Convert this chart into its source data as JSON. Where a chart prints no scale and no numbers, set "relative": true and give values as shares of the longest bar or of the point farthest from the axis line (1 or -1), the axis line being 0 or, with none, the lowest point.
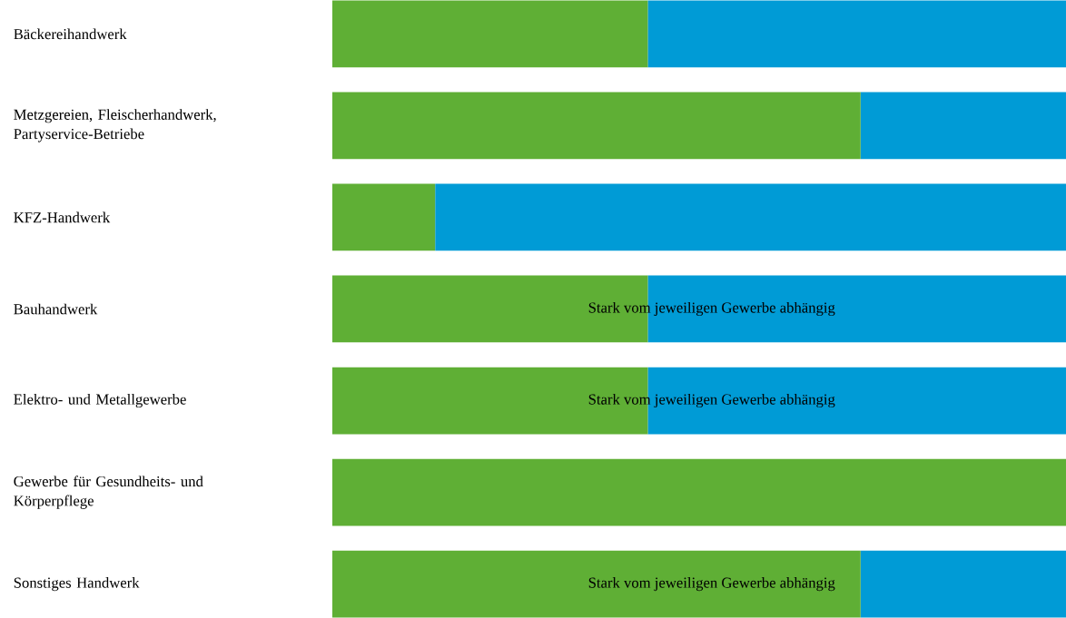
{
  "chart_data": {
    "type": "bar",
    "orientation": "horizontal",
    "stacked": true,
    "relative": true,
    "categories": [
      "Bäckereihandwerk",
      "Metzgereien, Fleischerhandwerk, Partyservice-Betriebe",
      "KFZ-Handwerk",
      "Bauhandwerk",
      "Elektro- und Metallgewerbe",
      "Gewerbe für Gesundheits- und Körperpflege",
      "Sonstiges Handwerk"
    ],
    "series": [
      {
        "color": "#5faf35",
        "values": [
          0.43,
          0.72,
          0.14,
          0.43,
          0.43,
          1.0,
          0.72
        ]
      },
      {
        "color": "#009bd6",
        "values": [
          0.57,
          0.28,
          0.86,
          0.57,
          0.57,
          0,
          0.28
        ]
      }
    ],
    "annotations": [
      "Stark vom jeweiligen Gewerbe abhängig",
      "Stark vom jeweiligen Gewerbe abhängig",
      "Stark vom jeweiligen Gewerbe abhängig"
    ]
  }
}
